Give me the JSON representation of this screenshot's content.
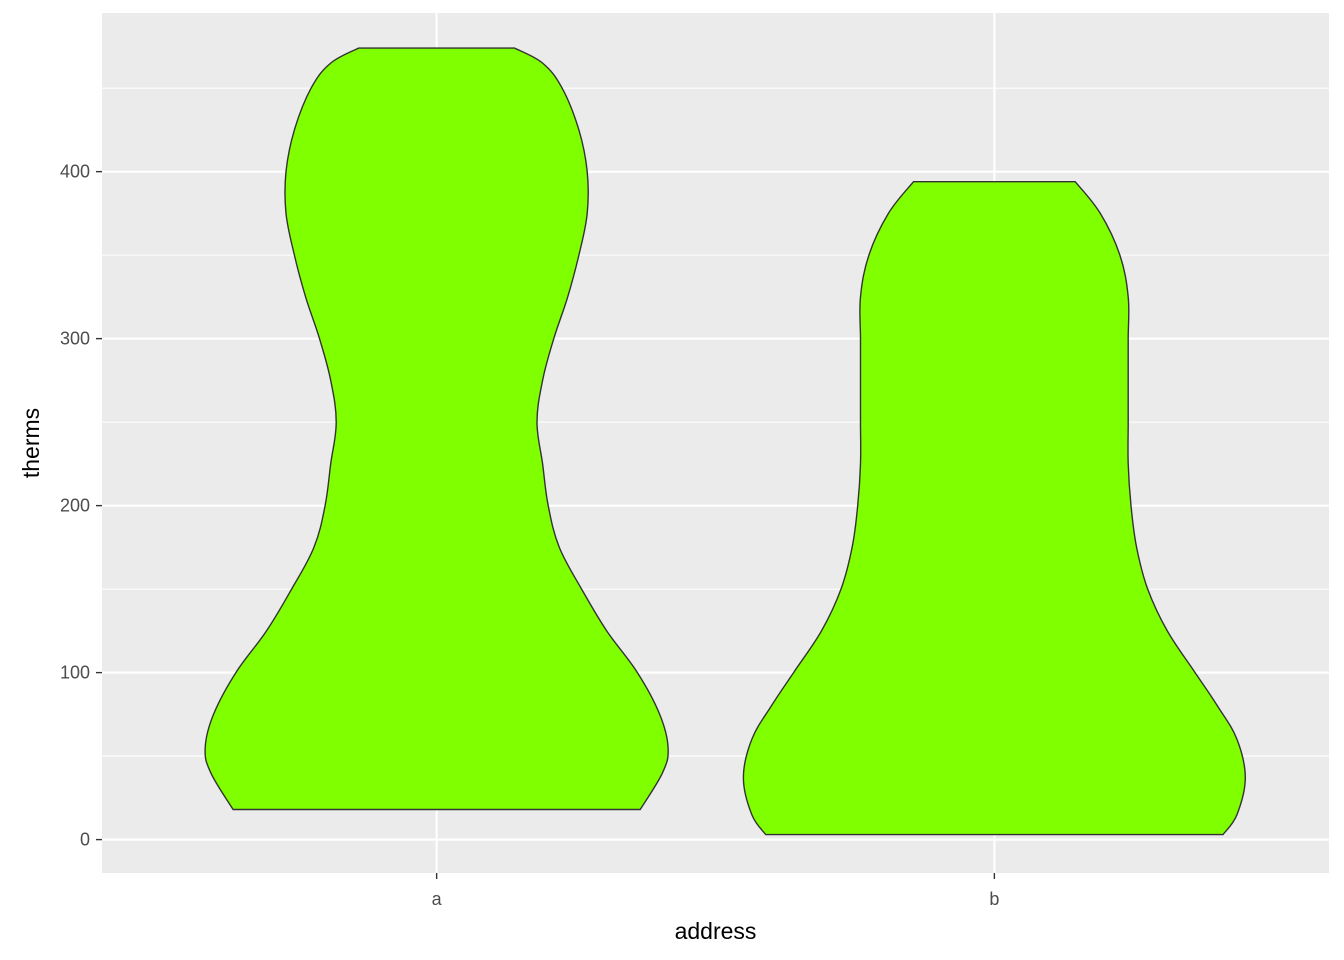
{
  "chart_data": {
    "type": "violin",
    "xlabel": "address",
    "ylabel": "therms",
    "categories": [
      "a",
      "b"
    ],
    "ylim": [
      -20,
      495
    ],
    "yticks": [
      0,
      100,
      200,
      300,
      400
    ],
    "grid": true,
    "fill_color": "#7FFF00",
    "outline_color": "#333333",
    "panel_background": "#EBEBEB",
    "violins": [
      {
        "category": "a",
        "min": 18,
        "max": 474,
        "profile": [
          {
            "y": 18,
            "width": 0.73
          },
          {
            "y": 40,
            "width": 0.81
          },
          {
            "y": 55,
            "width": 0.83
          },
          {
            "y": 75,
            "width": 0.8
          },
          {
            "y": 100,
            "width": 0.72
          },
          {
            "y": 125,
            "width": 0.61
          },
          {
            "y": 150,
            "width": 0.52
          },
          {
            "y": 175,
            "width": 0.44
          },
          {
            "y": 200,
            "width": 0.4
          },
          {
            "y": 225,
            "width": 0.38
          },
          {
            "y": 250,
            "width": 0.36
          },
          {
            "y": 275,
            "width": 0.38
          },
          {
            "y": 300,
            "width": 0.42
          },
          {
            "y": 325,
            "width": 0.47
          },
          {
            "y": 350,
            "width": 0.51
          },
          {
            "y": 375,
            "width": 0.54
          },
          {
            "y": 400,
            "width": 0.54
          },
          {
            "y": 425,
            "width": 0.51
          },
          {
            "y": 450,
            "width": 0.45
          },
          {
            "y": 465,
            "width": 0.38
          },
          {
            "y": 474,
            "width": 0.28
          }
        ]
      },
      {
        "category": "b",
        "min": 3,
        "max": 394,
        "profile": [
          {
            "y": 3,
            "width": 0.82
          },
          {
            "y": 15,
            "width": 0.87
          },
          {
            "y": 37,
            "width": 0.9
          },
          {
            "y": 60,
            "width": 0.87
          },
          {
            "y": 80,
            "width": 0.8
          },
          {
            "y": 100,
            "width": 0.72
          },
          {
            "y": 125,
            "width": 0.62
          },
          {
            "y": 150,
            "width": 0.55
          },
          {
            "y": 175,
            "width": 0.51
          },
          {
            "y": 200,
            "width": 0.49
          },
          {
            "y": 225,
            "width": 0.48
          },
          {
            "y": 250,
            "width": 0.48
          },
          {
            "y": 275,
            "width": 0.48
          },
          {
            "y": 300,
            "width": 0.48
          },
          {
            "y": 325,
            "width": 0.48
          },
          {
            "y": 350,
            "width": 0.45
          },
          {
            "y": 375,
            "width": 0.38
          },
          {
            "y": 394,
            "width": 0.29
          }
        ]
      }
    ]
  }
}
